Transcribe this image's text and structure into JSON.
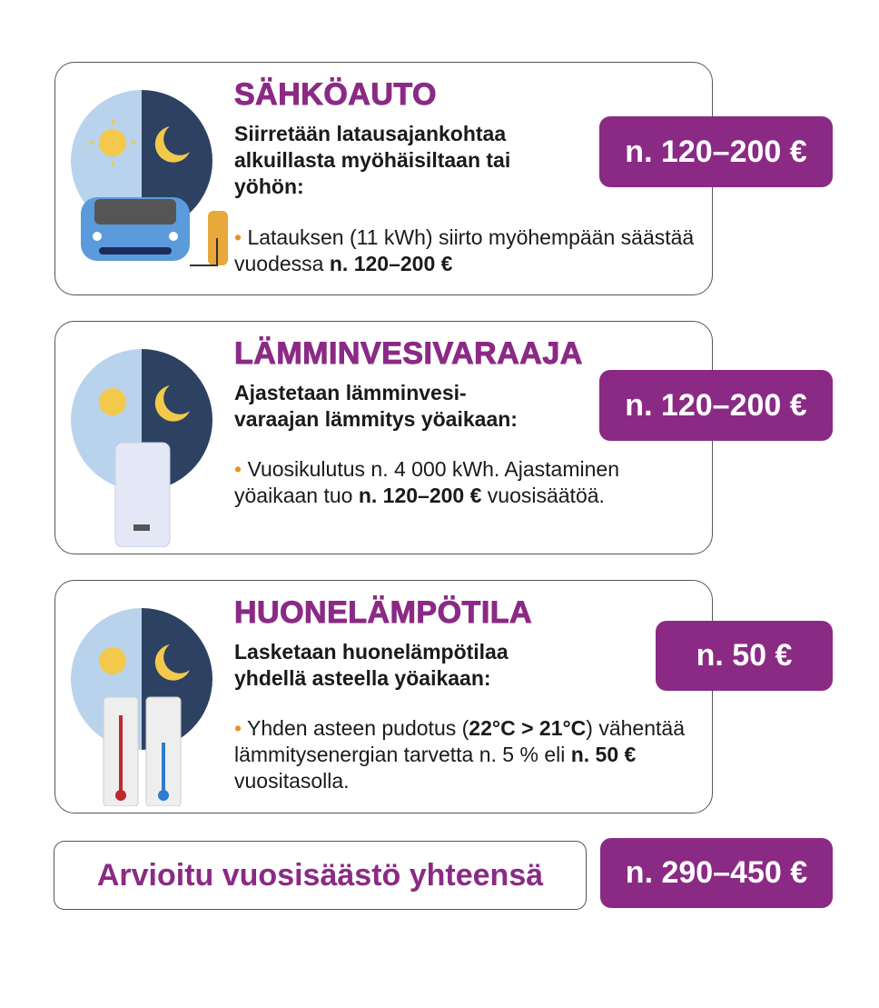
{
  "colors": {
    "accent": "#8b2a85",
    "bullet": "#e8912b",
    "day_sky": "#b9d3ec",
    "night_sky": "#2d4262"
  },
  "cards": [
    {
      "title": "SÄHKÖAUTO",
      "lead": "Siirretään latausajankohtaa alkuillasta myöhäisiltaan tai yöhön:",
      "bullet_pre": "Latauksen (11 kWh) siirto myöhempään säästää vuodessa ",
      "bullet_bold": "n. 120–200 €",
      "bullet_post": "",
      "badge": "n. 120–200 €",
      "icon": "day-night-electric-car-icon"
    },
    {
      "title": "LÄMMINVESIVARAAJA",
      "lead": "Ajastetaan lämminvesi-varaajan lämmitys yöaikaan:",
      "bullet_pre": "Vuosikulutus n. 4 000 kWh. Ajastaminen yöaikaan tuo ",
      "bullet_bold": "n. 120–200 €",
      "bullet_post": " vuosisäätöä.",
      "badge": "n. 120–200 €",
      "icon": "day-night-water-heater-icon"
    },
    {
      "title": "HUONELÄMPÖTILA",
      "lead": "Lasketaan huonelämpötilaa yhdellä asteella yöaikaan:",
      "bullet_pre": "Yhden asteen pudotus (",
      "bullet_bold": "22°C > 21°C",
      "bullet_post": ") vähentää lämmitysenergian tarvetta n. 5 % eli ",
      "bullet_bold2": "n. 50 €",
      "bullet_post2": " vuositasolla.",
      "badge": "n. 50 €",
      "icon": "day-night-thermometer-icon"
    }
  ],
  "total": {
    "label": "Arvioitu vuosisäästö yhteensä",
    "value": "n. 290–450 €"
  }
}
